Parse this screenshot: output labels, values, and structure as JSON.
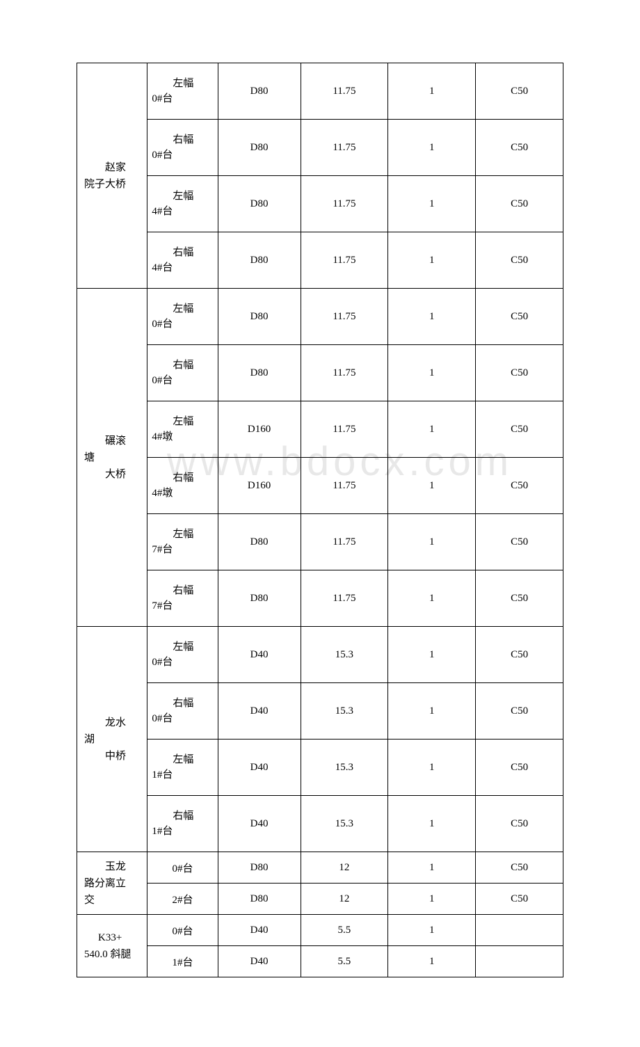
{
  "watermark": "www.bdocx.com",
  "table": {
    "groups": [
      {
        "bridge_lines": [
          "赵家",
          "院子大桥"
        ],
        "bridge_indent": [
          30,
          0
        ],
        "rows": [
          {
            "pos_line1": "左幅",
            "pos_line2": "0#台",
            "d": "D80",
            "val": "11.75",
            "one": "1",
            "c": "C50",
            "h": "tall"
          },
          {
            "pos_line1": "右幅",
            "pos_line2": "0#台",
            "d": "D80",
            "val": "11.75",
            "one": "1",
            "c": "C50",
            "h": "tall"
          },
          {
            "pos_line1": "左幅",
            "pos_line2": "4#台",
            "d": "D80",
            "val": "11.75",
            "one": "1",
            "c": "C50",
            "h": "tall"
          },
          {
            "pos_line1": "右幅",
            "pos_line2": "4#台",
            "d": "D80",
            "val": "11.75",
            "one": "1",
            "c": "C50",
            "h": "tall"
          }
        ]
      },
      {
        "bridge_lines": [
          "碾滚",
          "塘",
          "大桥"
        ],
        "bridge_indent": [
          30,
          0,
          30
        ],
        "rows": [
          {
            "pos_line1": "左幅",
            "pos_line2": "0#台",
            "d": "D80",
            "val": "11.75",
            "one": "1",
            "c": "C50",
            "h": "tall"
          },
          {
            "pos_line1": "右幅",
            "pos_line2": "0#台",
            "d": "D80",
            "val": "11.75",
            "one": "1",
            "c": "C50",
            "h": "tall"
          },
          {
            "pos_line1": "左幅",
            "pos_line2": "4#墩",
            "d": "D160",
            "val": "11.75",
            "one": "1",
            "c": "C50",
            "h": "tall"
          },
          {
            "pos_line1": "右幅",
            "pos_line2": "4#墩",
            "d": "D160",
            "val": "11.75",
            "one": "1",
            "c": "C50",
            "h": "tall"
          },
          {
            "pos_line1": "左幅",
            "pos_line2": "7#台",
            "d": "D80",
            "val": "11.75",
            "one": "1",
            "c": "C50",
            "h": "tall"
          },
          {
            "pos_line1": "右幅",
            "pos_line2": "7#台",
            "d": "D80",
            "val": "11.75",
            "one": "1",
            "c": "C50",
            "h": "tall"
          }
        ]
      },
      {
        "bridge_lines": [
          "龙水",
          "湖",
          "中桥"
        ],
        "bridge_indent": [
          30,
          0,
          30
        ],
        "rows": [
          {
            "pos_line1": "左幅",
            "pos_line2": "0#台",
            "d": "D40",
            "val": "15.3",
            "one": "1",
            "c": "C50",
            "h": "tall"
          },
          {
            "pos_line1": "右幅",
            "pos_line2": "0#台",
            "d": "D40",
            "val": "15.3",
            "one": "1",
            "c": "C50",
            "h": "tall"
          },
          {
            "pos_line1": "左幅",
            "pos_line2": "1#台",
            "d": "D40",
            "val": "15.3",
            "one": "1",
            "c": "C50",
            "h": "tall"
          },
          {
            "pos_line1": "右幅",
            "pos_line2": "1#台",
            "d": "D40",
            "val": "15.3",
            "one": "1",
            "c": "C50",
            "h": "tall"
          }
        ]
      },
      {
        "bridge_lines": [
          "玉龙",
          "路分离立",
          "交"
        ],
        "bridge_indent": [
          30,
          0,
          0
        ],
        "rows": [
          {
            "pos_center": "0#台",
            "d": "D80",
            "val": "12",
            "one": "1",
            "c": "C50",
            "h": "short"
          },
          {
            "pos_center": "2#台",
            "d": "D80",
            "val": "12",
            "one": "1",
            "c": "C50",
            "h": "short"
          }
        ]
      },
      {
        "bridge_lines": [
          "K33+",
          "540.0 斜腿"
        ],
        "bridge_indent": [
          20,
          0
        ],
        "rows": [
          {
            "pos_center": "0#台",
            "d": "D40",
            "val": "5.5",
            "one": "1",
            "c": "",
            "h": "short"
          },
          {
            "pos_center": "1#台",
            "d": "D40",
            "val": "5.5",
            "one": "1",
            "c": "",
            "h": "short"
          }
        ]
      }
    ]
  }
}
